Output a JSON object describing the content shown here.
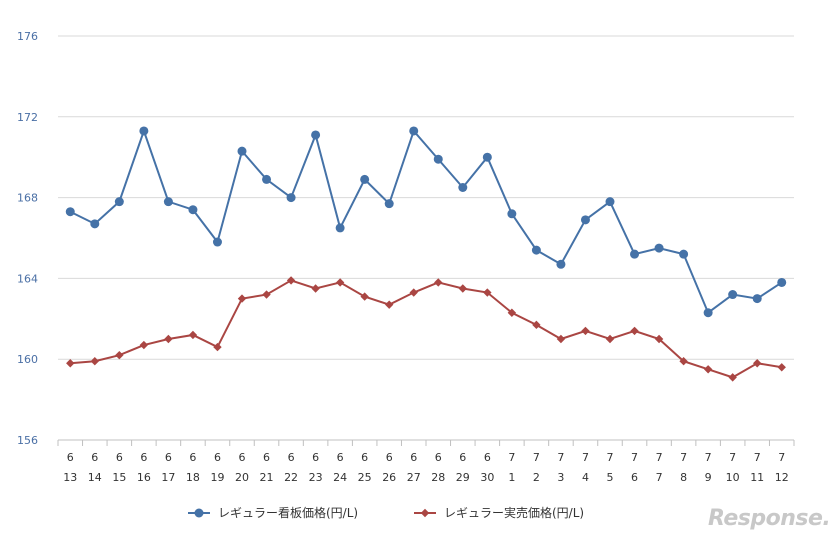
{
  "chart_data": {
    "type": "line",
    "title": "",
    "xlabel": "",
    "ylabel": "",
    "ylim": [
      156,
      176
    ],
    "yticks": [
      156,
      160,
      164,
      168,
      172,
      176
    ],
    "grid": true,
    "legend_position": "bottom",
    "categories": [
      [
        "6",
        "13"
      ],
      [
        "6",
        "14"
      ],
      [
        "6",
        "15"
      ],
      [
        "6",
        "16"
      ],
      [
        "6",
        "17"
      ],
      [
        "6",
        "18"
      ],
      [
        "6",
        "19"
      ],
      [
        "6",
        "20"
      ],
      [
        "6",
        "21"
      ],
      [
        "6",
        "22"
      ],
      [
        "6",
        "23"
      ],
      [
        "6",
        "24"
      ],
      [
        "6",
        "25"
      ],
      [
        "6",
        "26"
      ],
      [
        "6",
        "27"
      ],
      [
        "6",
        "28"
      ],
      [
        "6",
        "29"
      ],
      [
        "6",
        "30"
      ],
      [
        "7",
        "1"
      ],
      [
        "7",
        "2"
      ],
      [
        "7",
        "3"
      ],
      [
        "7",
        "4"
      ],
      [
        "7",
        "5"
      ],
      [
        "7",
        "6"
      ],
      [
        "7",
        "7"
      ],
      [
        "7",
        "8"
      ],
      [
        "7",
        "9"
      ],
      [
        "7",
        "10"
      ],
      [
        "7",
        "11"
      ],
      [
        "7",
        "12"
      ]
    ],
    "series": [
      {
        "name": "レギュラー看板価格(円/L)",
        "color": "#4572a7",
        "marker": "circle",
        "values": [
          167.3,
          166.7,
          167.8,
          171.3,
          167.8,
          167.4,
          165.8,
          170.3,
          168.9,
          168.0,
          171.1,
          166.5,
          168.9,
          167.7,
          171.3,
          169.9,
          168.5,
          170.0,
          167.2,
          165.4,
          164.7,
          166.9,
          167.8,
          165.2,
          165.5,
          165.2,
          162.3,
          163.2,
          163.0,
          163.8
        ]
      },
      {
        "name": "レギュラー実売価格(円/L)",
        "color": "#aa4643",
        "marker": "diamond",
        "values": [
          159.8,
          159.9,
          160.2,
          160.7,
          161.0,
          161.2,
          160.6,
          163.0,
          163.2,
          163.9,
          163.5,
          163.8,
          163.1,
          162.7,
          163.3,
          163.8,
          163.5,
          163.3,
          162.3,
          161.7,
          161.0,
          161.4,
          161.0,
          161.4,
          161.0,
          159.9,
          159.5,
          159.1,
          159.8,
          159.6
        ]
      }
    ]
  },
  "watermark": "Response."
}
